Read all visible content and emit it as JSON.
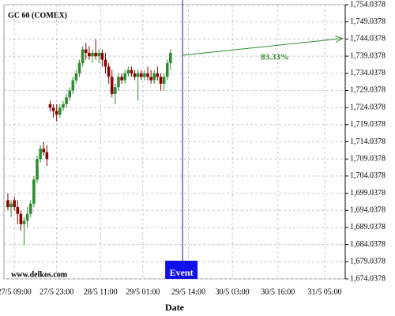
{
  "chart_data": {
    "type": "candlestick",
    "title": "GC 60 (COMEX)",
    "watermark": "www.delkos.com",
    "x_label": "Date",
    "grid": true,
    "up_color": "#2e8b2e",
    "down_color": "#8b0000",
    "x": [
      0,
      1,
      2,
      3,
      4,
      5,
      6,
      7,
      8,
      9,
      10,
      11,
      12,
      13,
      14,
      15,
      16,
      17,
      18,
      19,
      20,
      21,
      22,
      23,
      24,
      25,
      26,
      27,
      28,
      29,
      30,
      31,
      32,
      33,
      34,
      35,
      36,
      37,
      38,
      39,
      40,
      41,
      42,
      43,
      44,
      45,
      46,
      47,
      48,
      49,
      50
    ],
    "open": [
      1697,
      1695,
      1697,
      1695,
      1693,
      1690,
      1691,
      1693,
      1696,
      1703,
      1709,
      1712,
      1711,
      1725,
      1724,
      1723,
      1722,
      1724,
      1725,
      1727,
      1729,
      1732,
      1734,
      1737,
      1741,
      1740,
      1739,
      1740,
      1739,
      1740,
      1738,
      1736,
      1733,
      1728,
      1730,
      1733,
      1732,
      1734,
      1735,
      1734,
      1733,
      1734,
      1733,
      1734,
      1733,
      1732,
      1734,
      1733,
      1731,
      1733,
      1737
    ],
    "high": [
      1699,
      1697,
      1698,
      1697,
      1694,
      1692,
      1695,
      1697,
      1704,
      1710,
      1713,
      1714,
      1713,
      1726,
      1725,
      1725,
      1725,
      1726,
      1728,
      1730,
      1733,
      1735,
      1738,
      1742,
      1743,
      1742,
      1741,
      1744,
      1741,
      1741,
      1740,
      1737,
      1735,
      1731,
      1734,
      1734,
      1735,
      1736,
      1736,
      1735,
      1735,
      1735,
      1735,
      1736,
      1735,
      1735,
      1736,
      1734,
      1734,
      1738,
      1741
    ],
    "low": [
      1694,
      1692,
      1694,
      1690,
      1688,
      1684,
      1689,
      1692,
      1695,
      1702,
      1708,
      1710,
      1707,
      1723,
      1721,
      1720,
      1721,
      1723,
      1724,
      1726,
      1728,
      1731,
      1733,
      1736,
      1738,
      1738,
      1737,
      1738,
      1737,
      1736,
      1734,
      1731,
      1727,
      1725,
      1729,
      1731,
      1731,
      1733,
      1733,
      1732,
      1726,
      1732,
      1732,
      1732,
      1731,
      1731,
      1732,
      1729,
      1729,
      1732,
      1735
    ],
    "close": [
      1695,
      1696,
      1695,
      1693,
      1690,
      1691,
      1693,
      1696,
      1703,
      1709,
      1712,
      1711,
      1709,
      1724,
      1723,
      1722,
      1724,
      1725,
      1727,
      1729,
      1732,
      1734,
      1737,
      1741,
      1740,
      1739,
      1740,
      1739,
      1740,
      1738,
      1736,
      1733,
      1728,
      1730,
      1733,
      1732,
      1734,
      1735,
      1734,
      1733,
      1734,
      1733,
      1734,
      1733,
      1732,
      1734,
      1733,
      1731,
      1733,
      1737,
      1740
    ],
    "xlim": [
      -1.2,
      103.7
    ],
    "ylim": [
      1674.0378,
      1754.0378
    ],
    "xticks": [
      {
        "value": 2,
        "label": "27/5 09:00"
      },
      {
        "value": 15,
        "label": "27/5 23:00"
      },
      {
        "value": 28.5,
        "label": "28/5 11:00"
      },
      {
        "value": 41.5,
        "label": "29/5 01:00"
      },
      {
        "value": 55.5,
        "label": "29/5 14:00"
      },
      {
        "value": 69,
        "label": "30/5 03:00"
      },
      {
        "value": 83,
        "label": "30/5 16:00"
      },
      {
        "value": 97.4,
        "label": "31/5 05:00"
      }
    ],
    "yticks": [
      {
        "value": 1674.0378,
        "label": "1,674.0378"
      },
      {
        "value": 1679.0378,
        "label": "1,679.0378"
      },
      {
        "value": 1684.0378,
        "label": "1,684.0378"
      },
      {
        "value": 1689.0378,
        "label": "1,689.0378"
      },
      {
        "value": 1694.0378,
        "label": "1,694.0378"
      },
      {
        "value": 1699.0378,
        "label": "1,699.0378"
      },
      {
        "value": 1704.0378,
        "label": "1,704.0378"
      },
      {
        "value": 1709.0378,
        "label": "1,709.0378"
      },
      {
        "value": 1714.0378,
        "label": "1,714.0378"
      },
      {
        "value": 1719.0378,
        "label": "1,719.0378"
      },
      {
        "value": 1724.0378,
        "label": "1,724.0378"
      },
      {
        "value": 1729.0378,
        "label": "1,729.0378"
      },
      {
        "value": 1734.0378,
        "label": "1,734.0378"
      },
      {
        "value": 1739.0378,
        "label": "1,739.0378"
      },
      {
        "value": 1744.0378,
        "label": "1,744.0378"
      },
      {
        "value": 1749.0378,
        "label": "1,749.0378"
      },
      {
        "value": 1754.0378,
        "label": "1,754.0378"
      }
    ],
    "event": {
      "label": "Event",
      "x": 53.7,
      "color": "#1010ee"
    },
    "projection": {
      "label": "83.33%",
      "x": [
        53.7,
        102.9
      ],
      "y": [
        1739.3,
        1744.2
      ],
      "color": "#2e8b2e"
    }
  }
}
